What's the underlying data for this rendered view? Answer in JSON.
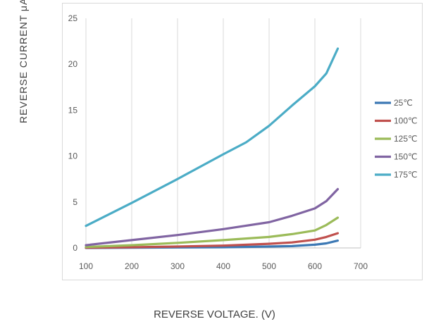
{
  "chart_data": {
    "type": "line",
    "title": "",
    "xlabel": "REVERSE VOLTAGE. (V)",
    "ylabel": "REVERSE CURRENT  μA(  )",
    "xlim": [
      100,
      700
    ],
    "ylim": [
      0,
      25
    ],
    "x_ticks": [
      "100",
      "200",
      "300",
      "400",
      "500",
      "600",
      "700"
    ],
    "y_ticks": [
      "0",
      "5",
      "10",
      "15",
      "20",
      "25"
    ],
    "grid": "vertical",
    "legend_position": "right",
    "series": [
      {
        "name": "25℃",
        "color": "#3c78b4",
        "points": [
          [
            100,
            0.0
          ],
          [
            200,
            0.02
          ],
          [
            300,
            0.05
          ],
          [
            400,
            0.08
          ],
          [
            500,
            0.15
          ],
          [
            550,
            0.2
          ],
          [
            600,
            0.35
          ],
          [
            625,
            0.5
          ],
          [
            650,
            0.8
          ]
        ]
      },
      {
        "name": "100℃",
        "color": "#c0504d",
        "points": [
          [
            100,
            0.02
          ],
          [
            200,
            0.08
          ],
          [
            300,
            0.15
          ],
          [
            400,
            0.25
          ],
          [
            500,
            0.45
          ],
          [
            550,
            0.6
          ],
          [
            600,
            0.9
          ],
          [
            625,
            1.2
          ],
          [
            650,
            1.6
          ]
        ]
      },
      {
        "name": "125℃",
        "color": "#9bbb59",
        "points": [
          [
            100,
            0.1
          ],
          [
            200,
            0.3
          ],
          [
            300,
            0.55
          ],
          [
            400,
            0.85
          ],
          [
            500,
            1.2
          ],
          [
            550,
            1.5
          ],
          [
            600,
            1.9
          ],
          [
            625,
            2.5
          ],
          [
            650,
            3.3
          ]
        ]
      },
      {
        "name": "150℃",
        "color": "#8064a2",
        "points": [
          [
            100,
            0.3
          ],
          [
            200,
            0.85
          ],
          [
            300,
            1.4
          ],
          [
            400,
            2.05
          ],
          [
            500,
            2.8
          ],
          [
            550,
            3.5
          ],
          [
            600,
            4.3
          ],
          [
            625,
            5.1
          ],
          [
            650,
            6.4
          ]
        ]
      },
      {
        "name": "175℃",
        "color": "#4bacc6",
        "points": [
          [
            100,
            2.4
          ],
          [
            200,
            4.9
          ],
          [
            300,
            7.5
          ],
          [
            400,
            10.2
          ],
          [
            450,
            11.5
          ],
          [
            500,
            13.3
          ],
          [
            550,
            15.5
          ],
          [
            600,
            17.6
          ],
          [
            625,
            19.0
          ],
          [
            650,
            21.7
          ]
        ]
      }
    ]
  }
}
